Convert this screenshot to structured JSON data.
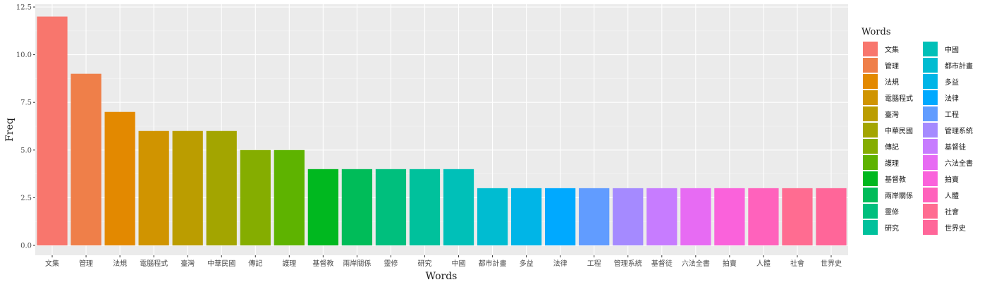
{
  "chart_data": {
    "type": "bar",
    "xlabel": "Words",
    "ylabel": "Freq",
    "ylim": [
      0,
      12.5
    ],
    "yticks": [
      "0.0",
      "2.5",
      "5.0",
      "7.5",
      "10.0",
      "12.5"
    ],
    "legend_title": "Words",
    "legend_position": "right",
    "grid": true,
    "categories": [
      "文集",
      "管理",
      "法規",
      "電腦程式",
      "臺灣",
      "中華民國",
      "傳記",
      "護理",
      "基督教",
      "兩岸關係",
      "靈修",
      "研究",
      "中國",
      "都市計畫",
      "多益",
      "法律",
      "工程",
      "管理系統",
      "基督徒",
      "六法全書",
      "拍賣",
      "人體",
      "社會",
      "世界史"
    ],
    "values": [
      12,
      9,
      7,
      6,
      6,
      6,
      5,
      5,
      4,
      4,
      4,
      4,
      4,
      3,
      3,
      3,
      3,
      3,
      3,
      3,
      3,
      3,
      3,
      3
    ],
    "colors": [
      "#F8766D",
      "#EF7F49",
      "#E38900",
      "#D09400",
      "#BB9D00",
      "#A3A500",
      "#85AD00",
      "#5EB300",
      "#00B81F",
      "#00BC59",
      "#00BF7D",
      "#00C19C",
      "#00C0B8",
      "#00BCD1",
      "#00B5E7",
      "#00A9FF",
      "#619CFF",
      "#A58AFF",
      "#C77CFF",
      "#E76BF3",
      "#FA62DB",
      "#FF62BC",
      "#FF6C91",
      "#FF6699"
    ]
  }
}
